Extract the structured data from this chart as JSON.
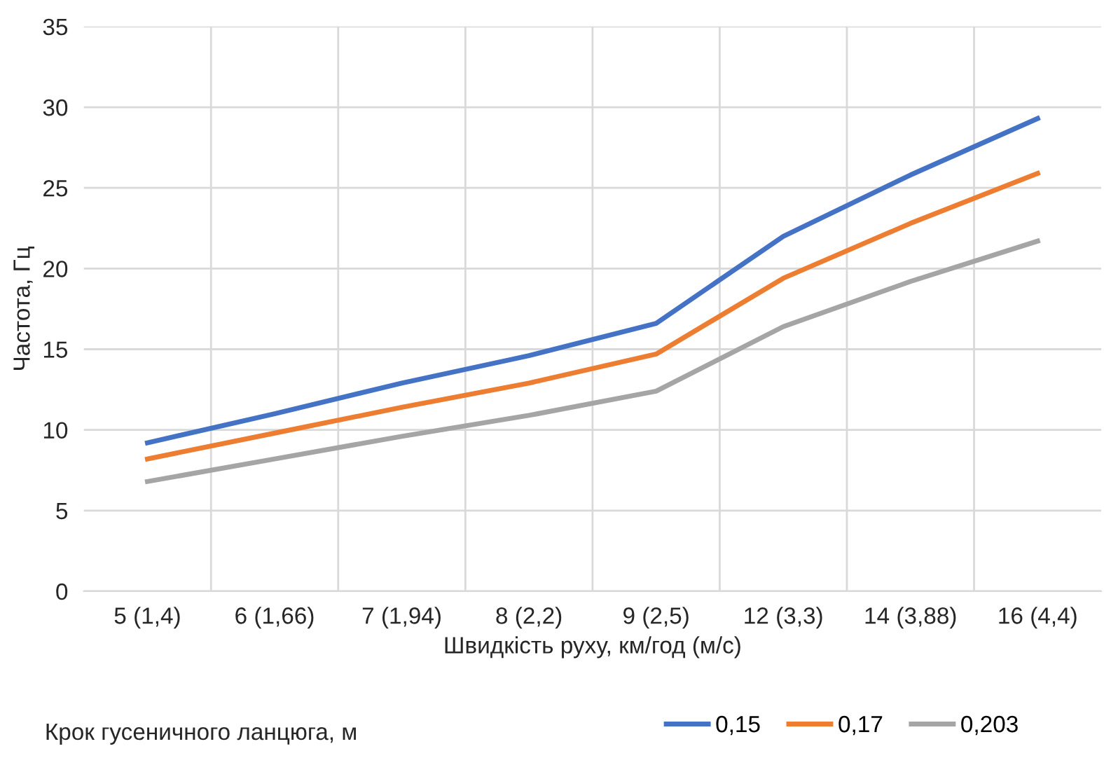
{
  "chart_data": {
    "type": "line",
    "xlabel": "Швидкість руху, км/год (м/с)",
    "ylabel": "Частота, Гц",
    "legend_title": "Крок гусеничного ланцюга, м",
    "categories": [
      "5 (1,4)",
      "6 (1,66)",
      "7 (1,94)",
      "8 (2,2)",
      "9 (2,5)",
      "12 (3,3)",
      "14 (3,88)",
      "16 (4,4)"
    ],
    "series": [
      {
        "name": "0,15",
        "color": "#4472c4",
        "values": [
          9.2,
          11.0,
          12.9,
          14.6,
          16.6,
          22.0,
          25.8,
          29.3
        ]
      },
      {
        "name": "0,17",
        "color": "#ed7d31",
        "values": [
          8.2,
          9.8,
          11.4,
          12.9,
          14.7,
          19.4,
          22.8,
          25.9
        ]
      },
      {
        "name": "0,203",
        "color": "#a5a5a5",
        "values": [
          6.8,
          8.2,
          9.6,
          10.9,
          12.4,
          16.4,
          19.2,
          21.7
        ]
      }
    ],
    "ylim": [
      0,
      35
    ],
    "yticks": [
      0,
      5,
      10,
      15,
      20,
      25,
      30,
      35
    ],
    "grid": true,
    "legend": "bottom",
    "marker": "none",
    "line_style": "solid"
  }
}
